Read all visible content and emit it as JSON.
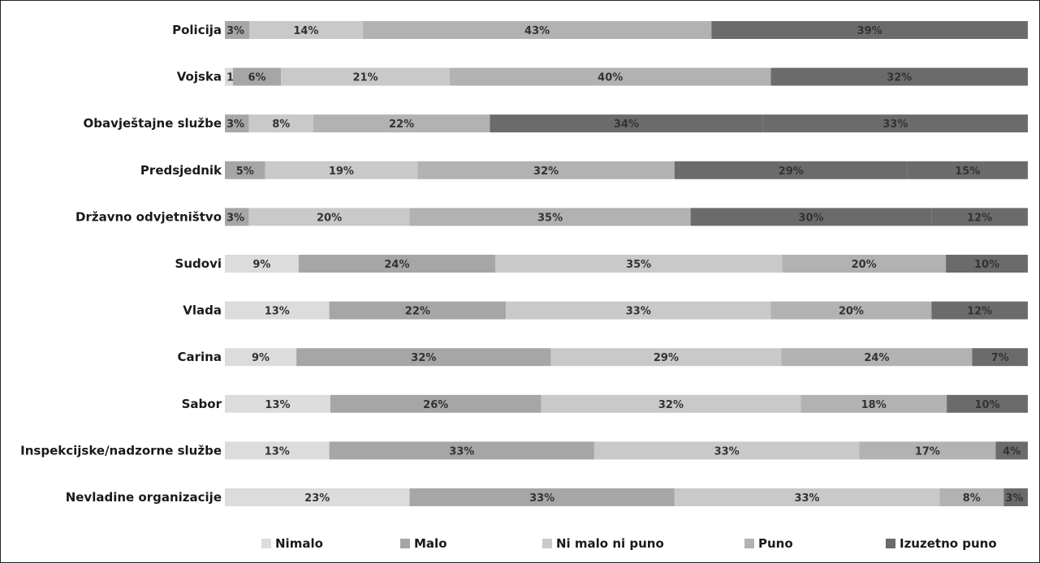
{
  "chart_data": {
    "type": "bar",
    "orientation": "horizontal",
    "stacked": true,
    "percent": true,
    "title": "",
    "xlabel": "",
    "ylabel": "",
    "legend_position": "bottom",
    "categories": [
      "Policija",
      "Vojska",
      "Obavještajne službe",
      "Predsjednik",
      "Državno odvjetništvo",
      "Sudovi",
      "Vlada",
      "Carina",
      "Sabor",
      "Inspekcijske/nadzorne službe",
      "Nevladine organizacije"
    ],
    "series": [
      {
        "name": "Nimalo",
        "color": "#dcdcdc",
        "values": [
          0,
          1,
          0,
          0,
          0,
          9,
          13,
          9,
          13,
          13,
          23
        ],
        "labels": [
          "",
          "1%",
          "",
          "",
          "",
          "9%",
          "13%",
          "9%",
          "13%",
          "13%",
          "23%"
        ]
      },
      {
        "name": "Malo",
        "color": "#a6a6a6",
        "values": [
          3,
          6,
          3,
          5,
          3,
          24,
          22,
          32,
          26,
          33,
          33
        ],
        "labels": [
          "3%",
          "6%",
          "3%",
          "5%",
          "3%",
          "24%",
          "22%",
          "32%",
          "26%",
          "33%",
          "33%"
        ]
      },
      {
        "name": "Ni malo ni puno",
        "color": "#c9c9c9",
        "values": [
          14,
          21,
          8,
          19,
          20,
          35,
          33,
          29,
          32,
          33,
          33
        ],
        "labels": [
          "14%",
          "21%",
          "8%",
          "19%",
          "20%",
          "35%",
          "33%",
          "29%",
          "32%",
          "33%",
          "33%"
        ]
      },
      {
        "name": "Puno",
        "color": "#b2b2b2",
        "values": [
          43,
          40,
          22,
          32,
          35,
          20,
          20,
          24,
          18,
          17,
          8
        ],
        "labels": [
          "43%",
          "40%",
          "22%",
          "32%",
          "35%",
          "20%",
          "20%",
          "24%",
          "18%",
          "17%",
          "8%"
        ]
      },
      {
        "name": "Izuzetno puno",
        "color": "#6b6b6b",
        "values": [
          39,
          32,
          34,
          29,
          30,
          10,
          12,
          7,
          10,
          4,
          3
        ],
        "labels": [
          "39%",
          "32%",
          "34%",
          "29%",
          "30%",
          "10%",
          "12%",
          "7%",
          "10%",
          "4%",
          "3%"
        ]
      }
    ],
    "extra_segments": [
      {
        "category": "Obavještajne službe",
        "value": 33,
        "label": "33%",
        "color": "#6b6b6b"
      },
      {
        "category": "Predsjednik",
        "value": 15,
        "label": "15%",
        "color": "#6b6b6b"
      },
      {
        "category": "Državno odvjetništvo",
        "value": 12,
        "label": "12%",
        "color": "#6b6b6b"
      }
    ]
  }
}
